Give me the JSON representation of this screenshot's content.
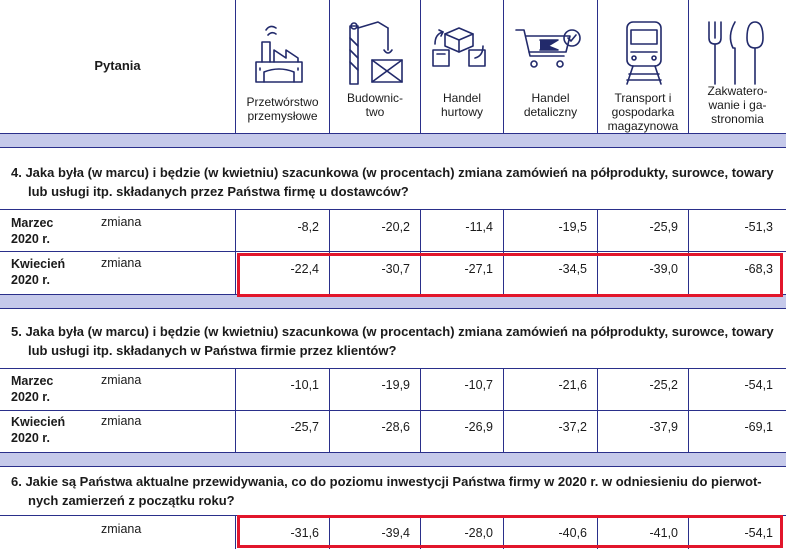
{
  "header": {
    "pytania_label": "Pytania",
    "columns": [
      {
        "label_lines": [
          "Przetwórstwo",
          "przemysłowe"
        ],
        "icon": "factory-icon"
      },
      {
        "label_lines": [
          "Budownic-",
          "two"
        ],
        "icon": "crane-icon"
      },
      {
        "label_lines": [
          "Handel",
          "hurtowy"
        ],
        "icon": "boxes-exchange-icon"
      },
      {
        "label_lines": [
          "Handel",
          "detaliczny"
        ],
        "icon": "shopping-cart-icon"
      },
      {
        "label_lines": [
          "Transport i",
          "gospodarka",
          "magazynowa"
        ],
        "icon": "train-icon"
      },
      {
        "label_lines": [
          "Zakwatero-",
          "wanie i ga-",
          "stronomia"
        ],
        "icon": "cutlery-icon"
      }
    ]
  },
  "questions": [
    {
      "line1": "4. Jaka była (w marcu) i będzie (w kwietniu) szacunkowa (w procentach) zmiana zamówień na półprodukty, surowce, towary",
      "line2": "lub usługi itp. składanych przez Państwa firmę u dostawców?",
      "rows": [
        {
          "label1": "Marzec",
          "label2": "2020 r.",
          "measure": "zmiana",
          "values": [
            "-8,2",
            "-20,2",
            "-11,4",
            "-19,5",
            "-25,9",
            "-51,3"
          ]
        },
        {
          "label1": "Kwiecień",
          "label2": "2020 r.",
          "measure": "zmiana",
          "values": [
            "-22,4",
            "-30,7",
            "-27,1",
            "-34,5",
            "-39,0",
            "-68,3"
          ]
        }
      ]
    },
    {
      "line1": "5. Jaka była (w marcu) i będzie (w kwietniu) szacunkowa (w procentach) zmiana zamówień na półprodukty, surowce, towary",
      "line2": "lub usługi itp. składanych w Państwa firmie przez klientów?",
      "rows": [
        {
          "label1": "Marzec",
          "label2": "2020 r.",
          "measure": "zmiana",
          "values": [
            "-10,1",
            "-19,9",
            "-10,7",
            "-21,6",
            "-25,2",
            "-54,1"
          ]
        },
        {
          "label1": "Kwiecień",
          "label2": "2020 r.",
          "measure": "zmiana",
          "values": [
            "-25,7",
            "-28,6",
            "-26,9",
            "-37,2",
            "-37,9",
            "-69,1"
          ]
        }
      ]
    },
    {
      "line1": "6. Jakie są Państwa aktualne przewidywania, co do poziomu inwestycji Państwa firmy w 2020 r. w odniesieniu do pierwot-",
      "line2": "nych zamierzeń z początku roku?",
      "rows": [
        {
          "label1": "",
          "label2": "",
          "measure": "zmiana",
          "values": [
            "-31,6",
            "-39,4",
            "-28,0",
            "-40,6",
            "-41,0",
            "-54,1"
          ]
        }
      ]
    }
  ]
}
